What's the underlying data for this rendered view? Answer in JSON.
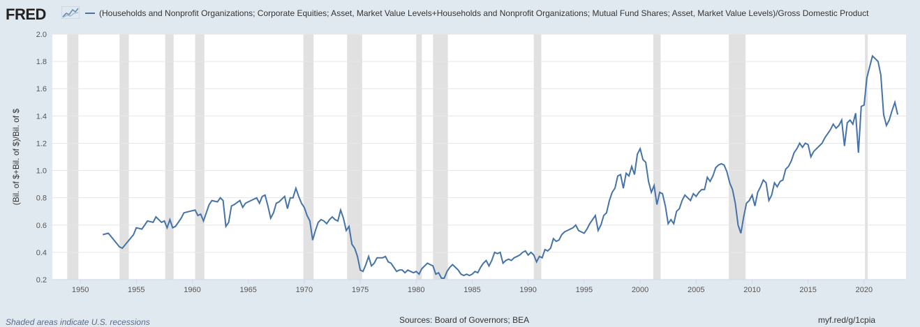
{
  "header": {
    "logo_text": "FRED",
    "legend_label": "(Households and Nonprofit Organizations; Corporate Equities; Asset, Market Value Levels+Households and Nonprofit Organizations; Mutual Fund Shares; Asset, Market Value Levels)/Gross Domestic Product"
  },
  "footer": {
    "note": "Shaded areas indicate U.S. recessions",
    "source": "Sources: Board of Governors; BEA",
    "link": "myf.red/g/1cpia"
  },
  "colors": {
    "background": "#e1e9f0",
    "plot_background": "#ffffff",
    "line": "#4572a7",
    "recession": "#e1e1e1"
  },
  "chart_data": {
    "type": "line",
    "title": "",
    "xlabel": "",
    "ylabel": "(Bil. of $+Bil. of $)/Bil. of $",
    "xlim": [
      1947.5,
      2023.75
    ],
    "ylim": [
      0.2,
      2.0
    ],
    "grid": true,
    "legend": "top",
    "x_ticks": [
      "1950",
      "1955",
      "1960",
      "1965",
      "1970",
      "1975",
      "1980",
      "1985",
      "1990",
      "1995",
      "2000",
      "2005",
      "2010",
      "2015",
      "2020"
    ],
    "y_ticks": [
      "0.2",
      "0.4",
      "0.6",
      "0.8",
      "1.0",
      "1.2",
      "1.4",
      "1.6",
      "1.8",
      "2.0"
    ],
    "recessions": [
      [
        1948.83,
        1949.83
      ],
      [
        1953.5,
        1954.33
      ],
      [
        1957.58,
        1958.33
      ],
      [
        1960.25,
        1961.08
      ],
      [
        1969.92,
        1970.83
      ],
      [
        1973.83,
        1975.17
      ],
      [
        1980.0,
        1980.5
      ],
      [
        1981.5,
        1982.83
      ],
      [
        1990.5,
        1991.17
      ],
      [
        2001.17,
        2001.83
      ],
      [
        2007.92,
        2009.42
      ],
      [
        2020.08,
        2020.33
      ]
    ],
    "series": [
      {
        "values": [
          [
            1952.0,
            0.53
          ],
          [
            1952.5,
            0.54
          ],
          [
            1953.0,
            0.49
          ],
          [
            1953.5,
            0.44
          ],
          [
            1953.75,
            0.43
          ],
          [
            1954.25,
            0.48
          ],
          [
            1954.75,
            0.53
          ],
          [
            1955.0,
            0.58
          ],
          [
            1955.5,
            0.57
          ],
          [
            1956.0,
            0.63
          ],
          [
            1956.5,
            0.62
          ],
          [
            1956.75,
            0.66
          ],
          [
            1957.25,
            0.62
          ],
          [
            1957.5,
            0.63
          ],
          [
            1957.75,
            0.58
          ],
          [
            1958.0,
            0.64
          ],
          [
            1958.25,
            0.58
          ],
          [
            1958.5,
            0.59
          ],
          [
            1959.0,
            0.65
          ],
          [
            1959.25,
            0.69
          ],
          [
            1959.75,
            0.7
          ],
          [
            1960.25,
            0.71
          ],
          [
            1960.5,
            0.67
          ],
          [
            1960.75,
            0.68
          ],
          [
            1961.0,
            0.63
          ],
          [
            1961.5,
            0.75
          ],
          [
            1961.75,
            0.78
          ],
          [
            1962.25,
            0.77
          ],
          [
            1962.5,
            0.8
          ],
          [
            1962.75,
            0.78
          ],
          [
            1963.0,
            0.59
          ],
          [
            1963.25,
            0.62
          ],
          [
            1963.5,
            0.74
          ],
          [
            1963.75,
            0.75
          ],
          [
            1964.25,
            0.78
          ],
          [
            1964.5,
            0.73
          ],
          [
            1964.75,
            0.76
          ],
          [
            1965.0,
            0.77
          ],
          [
            1965.5,
            0.79
          ],
          [
            1965.75,
            0.8
          ],
          [
            1966.0,
            0.76
          ],
          [
            1966.25,
            0.81
          ],
          [
            1966.5,
            0.82
          ],
          [
            1966.75,
            0.74
          ],
          [
            1967.0,
            0.65
          ],
          [
            1967.25,
            0.69
          ],
          [
            1967.5,
            0.76
          ],
          [
            1967.75,
            0.77
          ],
          [
            1968.25,
            0.81
          ],
          [
            1968.5,
            0.72
          ],
          [
            1968.75,
            0.8
          ],
          [
            1969.0,
            0.8
          ],
          [
            1969.25,
            0.87
          ],
          [
            1969.5,
            0.81
          ],
          [
            1969.75,
            0.76
          ],
          [
            1970.0,
            0.73
          ],
          [
            1970.25,
            0.67
          ],
          [
            1970.5,
            0.63
          ],
          [
            1970.75,
            0.49
          ],
          [
            1971.0,
            0.56
          ],
          [
            1971.25,
            0.62
          ],
          [
            1971.5,
            0.64
          ],
          [
            1971.75,
            0.63
          ],
          [
            1972.0,
            0.61
          ],
          [
            1972.25,
            0.64
          ],
          [
            1972.5,
            0.66
          ],
          [
            1972.75,
            0.64
          ],
          [
            1973.0,
            0.63
          ],
          [
            1973.25,
            0.71
          ],
          [
            1973.5,
            0.65
          ],
          [
            1973.75,
            0.56
          ],
          [
            1974.0,
            0.59
          ],
          [
            1974.25,
            0.46
          ],
          [
            1974.5,
            0.43
          ],
          [
            1974.75,
            0.37
          ],
          [
            1975.0,
            0.27
          ],
          [
            1975.25,
            0.26
          ],
          [
            1975.5,
            0.31
          ],
          [
            1975.75,
            0.37
          ],
          [
            1976.0,
            0.3
          ],
          [
            1976.25,
            0.32
          ],
          [
            1976.5,
            0.36
          ],
          [
            1976.75,
            0.36
          ],
          [
            1977.0,
            0.36
          ],
          [
            1977.25,
            0.37
          ],
          [
            1977.5,
            0.33
          ],
          [
            1977.75,
            0.32
          ],
          [
            1978.0,
            0.29
          ],
          [
            1978.25,
            0.26
          ],
          [
            1978.5,
            0.27
          ],
          [
            1978.75,
            0.27
          ],
          [
            1979.0,
            0.25
          ],
          [
            1979.25,
            0.27
          ],
          [
            1979.5,
            0.26
          ],
          [
            1979.75,
            0.25
          ],
          [
            1980.0,
            0.26
          ],
          [
            1980.25,
            0.24
          ],
          [
            1980.5,
            0.28
          ],
          [
            1980.75,
            0.3
          ],
          [
            1981.0,
            0.32
          ],
          [
            1981.25,
            0.31
          ],
          [
            1981.5,
            0.3
          ],
          [
            1981.75,
            0.24
          ],
          [
            1982.0,
            0.25
          ],
          [
            1982.25,
            0.21
          ],
          [
            1982.5,
            0.21
          ],
          [
            1982.75,
            0.26
          ],
          [
            1983.0,
            0.29
          ],
          [
            1983.25,
            0.31
          ],
          [
            1983.5,
            0.29
          ],
          [
            1983.75,
            0.27
          ],
          [
            1984.0,
            0.24
          ],
          [
            1984.25,
            0.23
          ],
          [
            1984.5,
            0.24
          ],
          [
            1984.75,
            0.23
          ],
          [
            1985.0,
            0.24
          ],
          [
            1985.25,
            0.26
          ],
          [
            1985.5,
            0.25
          ],
          [
            1985.75,
            0.29
          ],
          [
            1986.0,
            0.32
          ],
          [
            1986.25,
            0.34
          ],
          [
            1986.5,
            0.3
          ],
          [
            1986.75,
            0.34
          ],
          [
            1987.0,
            0.4
          ],
          [
            1987.25,
            0.39
          ],
          [
            1987.5,
            0.4
          ],
          [
            1987.75,
            0.32
          ],
          [
            1988.0,
            0.34
          ],
          [
            1988.25,
            0.35
          ],
          [
            1988.5,
            0.34
          ],
          [
            1988.75,
            0.36
          ],
          [
            1989.0,
            0.37
          ],
          [
            1989.25,
            0.38
          ],
          [
            1989.5,
            0.4
          ],
          [
            1989.75,
            0.41
          ],
          [
            1990.0,
            0.38
          ],
          [
            1990.25,
            0.4
          ],
          [
            1990.5,
            0.38
          ],
          [
            1990.75,
            0.33
          ],
          [
            1991.0,
            0.37
          ],
          [
            1991.25,
            0.36
          ],
          [
            1991.5,
            0.42
          ],
          [
            1991.75,
            0.41
          ],
          [
            1992.0,
            0.43
          ],
          [
            1992.25,
            0.5
          ],
          [
            1992.5,
            0.48
          ],
          [
            1992.75,
            0.49
          ],
          [
            1993.0,
            0.53
          ],
          [
            1993.25,
            0.55
          ],
          [
            1993.5,
            0.56
          ],
          [
            1993.75,
            0.57
          ],
          [
            1994.0,
            0.58
          ],
          [
            1994.25,
            0.6
          ],
          [
            1994.5,
            0.56
          ],
          [
            1994.75,
            0.55
          ],
          [
            1995.0,
            0.54
          ],
          [
            1995.25,
            0.57
          ],
          [
            1995.5,
            0.61
          ],
          [
            1995.75,
            0.64
          ],
          [
            1996.0,
            0.67
          ],
          [
            1996.25,
            0.56
          ],
          [
            1996.5,
            0.6
          ],
          [
            1996.75,
            0.67
          ],
          [
            1997.0,
            0.69
          ],
          [
            1997.25,
            0.78
          ],
          [
            1997.5,
            0.84
          ],
          [
            1997.75,
            0.87
          ],
          [
            1998.0,
            0.96
          ],
          [
            1998.25,
            0.97
          ],
          [
            1998.5,
            0.87
          ],
          [
            1998.75,
            0.98
          ],
          [
            1999.0,
            0.96
          ],
          [
            1999.25,
            1.03
          ],
          [
            1999.5,
            0.97
          ],
          [
            1999.75,
            1.12
          ],
          [
            2000.0,
            1.16
          ],
          [
            2000.25,
            1.08
          ],
          [
            2000.5,
            1.06
          ],
          [
            2000.75,
            0.92
          ],
          [
            2001.0,
            0.84
          ],
          [
            2001.25,
            0.89
          ],
          [
            2001.5,
            0.75
          ],
          [
            2001.75,
            0.84
          ],
          [
            2002.0,
            0.83
          ],
          [
            2002.25,
            0.74
          ],
          [
            2002.5,
            0.61
          ],
          [
            2002.75,
            0.64
          ],
          [
            2003.0,
            0.61
          ],
          [
            2003.25,
            0.7
          ],
          [
            2003.5,
            0.72
          ],
          [
            2003.75,
            0.78
          ],
          [
            2004.0,
            0.82
          ],
          [
            2004.25,
            0.8
          ],
          [
            2004.5,
            0.78
          ],
          [
            2004.75,
            0.83
          ],
          [
            2005.0,
            0.81
          ],
          [
            2005.25,
            0.84
          ],
          [
            2005.5,
            0.86
          ],
          [
            2005.75,
            0.86
          ],
          [
            2006.0,
            0.95
          ],
          [
            2006.25,
            0.92
          ],
          [
            2006.5,
            0.96
          ],
          [
            2006.75,
            1.02
          ],
          [
            2007.0,
            1.04
          ],
          [
            2007.25,
            1.05
          ],
          [
            2007.5,
            1.04
          ],
          [
            2007.75,
            0.99
          ],
          [
            2008.0,
            0.91
          ],
          [
            2008.25,
            0.86
          ],
          [
            2008.5,
            0.76
          ],
          [
            2008.75,
            0.6
          ],
          [
            2009.0,
            0.54
          ],
          [
            2009.25,
            0.66
          ],
          [
            2009.5,
            0.76
          ],
          [
            2009.75,
            0.78
          ],
          [
            2010.0,
            0.82
          ],
          [
            2010.25,
            0.74
          ],
          [
            2010.5,
            0.84
          ],
          [
            2010.75,
            0.88
          ],
          [
            2011.0,
            0.93
          ],
          [
            2011.25,
            0.91
          ],
          [
            2011.5,
            0.78
          ],
          [
            2011.75,
            0.82
          ],
          [
            2012.0,
            0.91
          ],
          [
            2012.25,
            0.88
          ],
          [
            2012.5,
            0.92
          ],
          [
            2012.75,
            0.93
          ],
          [
            2013.0,
            1.01
          ],
          [
            2013.25,
            1.03
          ],
          [
            2013.5,
            1.07
          ],
          [
            2013.75,
            1.13
          ],
          [
            2014.0,
            1.16
          ],
          [
            2014.25,
            1.2
          ],
          [
            2014.5,
            1.17
          ],
          [
            2014.75,
            1.2
          ],
          [
            2015.0,
            1.19
          ],
          [
            2015.25,
            1.1
          ],
          [
            2015.5,
            1.14
          ],
          [
            2015.75,
            1.16
          ],
          [
            2016.0,
            1.18
          ],
          [
            2016.25,
            1.2
          ],
          [
            2016.5,
            1.24
          ],
          [
            2016.75,
            1.27
          ],
          [
            2017.0,
            1.3
          ],
          [
            2017.25,
            1.34
          ],
          [
            2017.5,
            1.31
          ],
          [
            2017.75,
            1.33
          ],
          [
            2018.0,
            1.37
          ],
          [
            2018.25,
            1.18
          ],
          [
            2018.5,
            1.35
          ],
          [
            2018.75,
            1.37
          ],
          [
            2019.0,
            1.34
          ],
          [
            2019.25,
            1.42
          ],
          [
            2019.5,
            1.13
          ],
          [
            2019.75,
            1.47
          ],
          [
            2020.0,
            1.48
          ],
          [
            2020.25,
            1.68
          ],
          [
            2020.5,
            1.76
          ],
          [
            2020.75,
            1.84
          ],
          [
            2021.0,
            1.82
          ],
          [
            2021.25,
            1.8
          ],
          [
            2021.5,
            1.7
          ],
          [
            2021.75,
            1.41
          ],
          [
            2022.0,
            1.33
          ],
          [
            2022.25,
            1.37
          ],
          [
            2022.5,
            1.44
          ],
          [
            2022.75,
            1.5
          ],
          [
            2023.0,
            1.41
          ]
        ]
      }
    ]
  }
}
